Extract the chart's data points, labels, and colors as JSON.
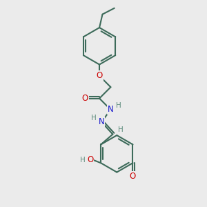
{
  "bg_color": "#ebebeb",
  "bond_color": "#3d6b5a",
  "bond_width": 1.5,
  "atom_colors": {
    "O": "#cc0000",
    "N": "#1a1acc",
    "H": "#5a8a7a",
    "C": "#3d6b5a"
  },
  "font_size": 7.5,
  "fig_width": 3.0,
  "fig_height": 3.0,
  "dpi": 100,
  "xlim": [
    0,
    10
  ],
  "ylim": [
    0,
    10
  ]
}
